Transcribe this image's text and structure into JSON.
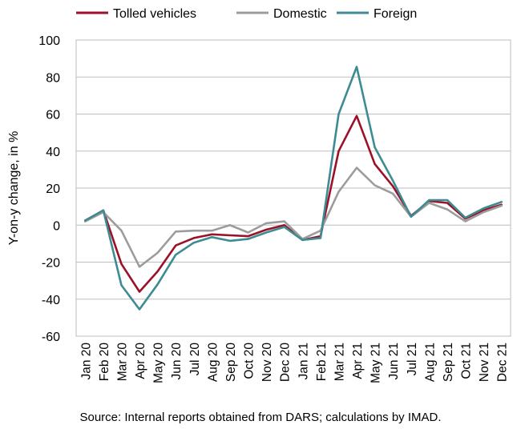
{
  "chart_data": {
    "type": "line",
    "ylabel": "Y-on-y change, in %",
    "ylim": [
      -60,
      100
    ],
    "yticks": [
      -60,
      -40,
      -20,
      0,
      20,
      40,
      60,
      80,
      100
    ],
    "grid": true,
    "legend_position": "top",
    "categories": [
      "Jan 20",
      "Feb 20",
      "Mar 20",
      "Apr 20",
      "May 20",
      "Jun 20",
      "Jul 20",
      "Aug 20",
      "Sep 20",
      "Oct 20",
      "Nov 20",
      "Dec 20",
      "Jan 21",
      "Feb 21",
      "Mar 21",
      "Apr 21",
      "May 21",
      "Jun 21",
      "Jul 21",
      "Aug 21",
      "Sep 21",
      "Oct 21",
      "Nov 21",
      "Dec 21"
    ],
    "series": [
      {
        "name": "Tolled vehicles",
        "color": "#9b1228",
        "values": [
          2.5,
          8,
          -21,
          -36,
          -25,
          -11,
          -7,
          -5,
          -5.5,
          -6,
          -2.5,
          0,
          -8,
          -6,
          40,
          59,
          33,
          21,
          5,
          13,
          12,
          3.5,
          8,
          11
        ]
      },
      {
        "name": "Domestic",
        "color": "#9c9c9c",
        "values": [
          2,
          7,
          -3,
          -22.5,
          -15,
          -3.5,
          -3,
          -3,
          0,
          -4,
          1,
          2,
          -7.5,
          -3,
          18,
          31,
          21.5,
          17,
          4.5,
          12,
          8.5,
          2,
          7,
          10.5
        ]
      },
      {
        "name": "Foreign",
        "color": "#3d8b93",
        "values": [
          2.5,
          8,
          -32.5,
          -45.5,
          -32,
          -16,
          -9.5,
          -6.5,
          -8.5,
          -7.5,
          -4,
          -1,
          -8,
          -7,
          60,
          85.5,
          42,
          24,
          4.5,
          13.5,
          13.5,
          4,
          9,
          12.5
        ]
      }
    ]
  },
  "source": "Source: Internal reports obtained from DARS; calculations by IMAD."
}
